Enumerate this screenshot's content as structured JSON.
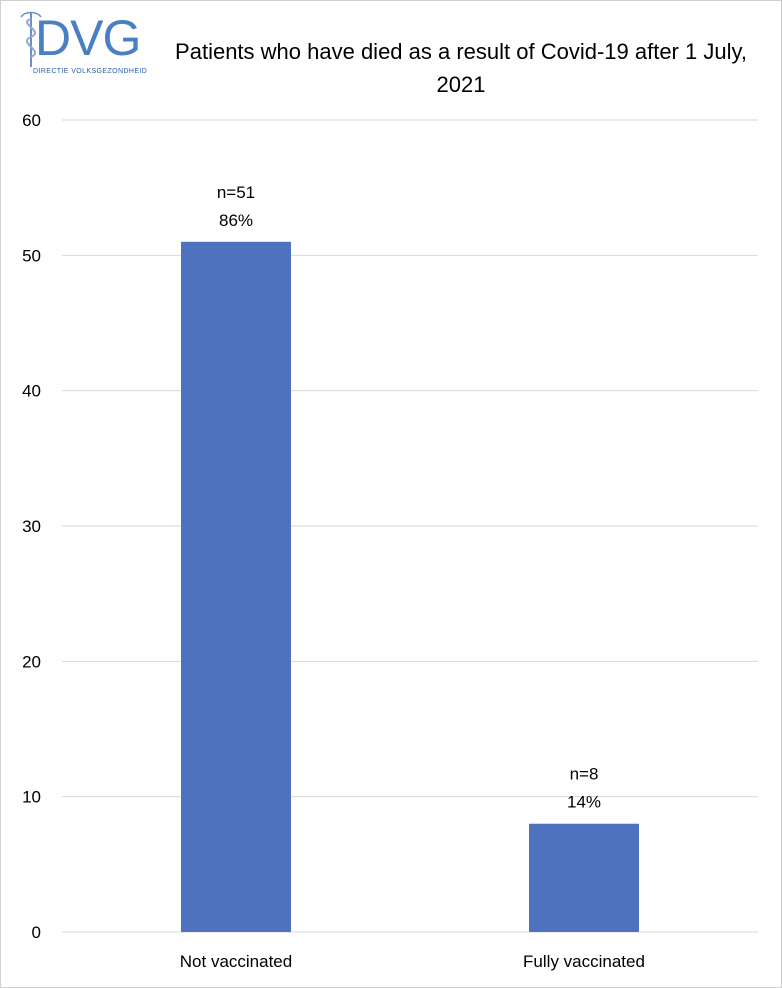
{
  "logo": {
    "text": "DVG",
    "subtitle": "DIRECTIE VOLKSGEZONDHEID"
  },
  "chart_data": {
    "type": "bar",
    "title": "Patients who have died as a result of Covid-19 after 1 July, 2021",
    "categories": [
      "Not vaccinated",
      "Fully vaccinated"
    ],
    "values": [
      51,
      8
    ],
    "data_labels": [
      {
        "count": "n=51",
        "percent": "86%"
      },
      {
        "count": "n=8",
        "percent": "14%"
      }
    ],
    "y_ticks": [
      0,
      10,
      20,
      30,
      40,
      50,
      60
    ],
    "ylim": [
      0,
      60
    ],
    "grid": true,
    "legend": "none",
    "bar_color": "#4e72be",
    "grid_color": "#d9d9d9"
  }
}
